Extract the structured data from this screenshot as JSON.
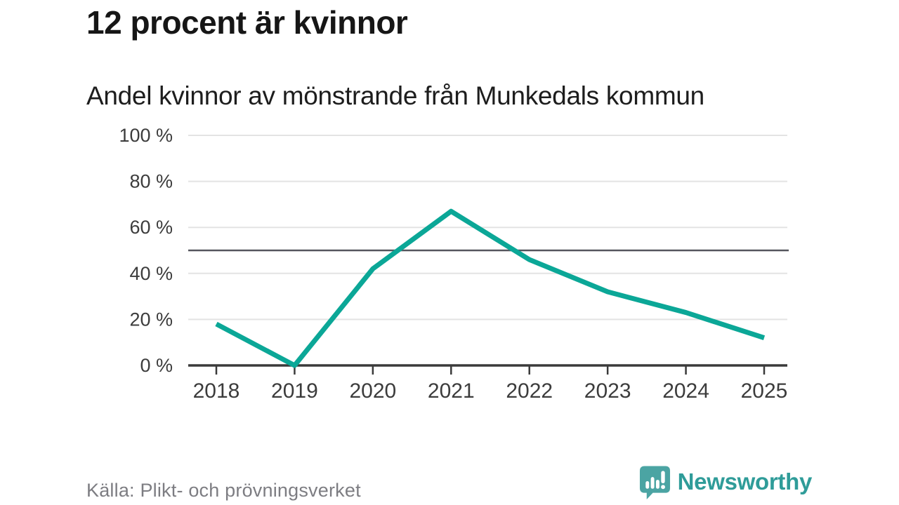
{
  "header": {
    "title": "12 procent är kvinnor",
    "subtitle": "Andel kvinnor av mönstrande från Munkedals kommun"
  },
  "footer": {
    "source": "Källa: Plikt- och prövningsverket",
    "brand": "Newsworthy"
  },
  "colors": {
    "line": "#0ba797",
    "grid": "#e3e3e3",
    "reference_line": "#55565e",
    "axis": "#3a3a3a",
    "tick_text": "#3c3c3c",
    "muted_text": "#7d7d82",
    "brand_text": "#2f9c99",
    "brand_badge": "#4ba4a3"
  },
  "chart_data": {
    "type": "line",
    "title": "12 procent är kvinnor",
    "subtitle": "Andel kvinnor av mönstrande från Munkedals kommun",
    "x": [
      2018,
      2019,
      2020,
      2021,
      2022,
      2023,
      2024,
      2025
    ],
    "series": [
      {
        "name": "Andel kvinnor av mönstrande",
        "values": [
          18,
          0,
          42,
          67,
          46,
          32,
          23,
          12
        ]
      }
    ],
    "xlabel": "",
    "ylabel": "",
    "ylim": [
      0,
      100
    ],
    "yticks": [
      0,
      20,
      40,
      60,
      80,
      100
    ],
    "ytick_suffix": " %",
    "reference_line": 50,
    "grid": true,
    "legend": false
  }
}
